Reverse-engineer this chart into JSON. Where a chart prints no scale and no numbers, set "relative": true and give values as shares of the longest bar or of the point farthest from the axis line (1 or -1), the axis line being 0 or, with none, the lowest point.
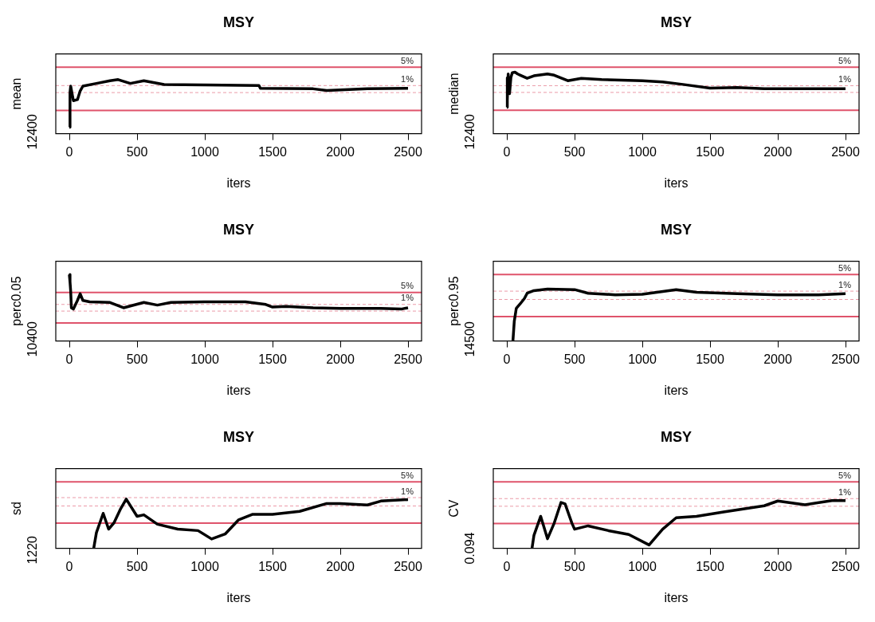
{
  "chart_data": [
    {
      "type": "line",
      "title": "MSY",
      "xlabel": "iters",
      "ylabel": "mean",
      "relative": true,
      "xlim": [
        -100,
        2600
      ],
      "xticks": [
        0,
        500,
        1000,
        1500,
        2000,
        2500
      ],
      "annotations": [
        "12400",
        {
          "text": "5%",
          "y": 1.23
        },
        {
          "text": "1%",
          "y": 0.89
        }
      ],
      "series": [
        {
          "color": "#000000",
          "x": [
            0,
            5,
            10,
            30,
            60,
            80,
            100,
            200,
            300,
            360,
            450,
            550,
            700,
            1000,
            1400,
            1410,
            1800,
            1900,
            2200,
            2500
          ],
          "values": [
            0.12,
            0.76,
            0.88,
            0.61,
            0.63,
            0.79,
            0.88,
            0.93,
            0.98,
            1,
            0.93,
            0.98,
            0.91,
            0.9,
            0.89,
            0.84,
            0.83,
            0.8,
            0.83,
            0.84
          ]
        }
      ],
      "ref_lines": [
        {
          "axis": "y",
          "value": 1.23,
          "color": "#df536b",
          "line_style": "solid"
        },
        {
          "axis": "y",
          "value": 0.43,
          "color": "#df536b",
          "line_style": "solid"
        },
        {
          "axis": "y",
          "value": 0.89,
          "color": "#eb9aa8",
          "line_style": "dashed"
        },
        {
          "axis": "y",
          "value": 0.76,
          "color": "#eb9aa8",
          "line_style": "dashed"
        }
      ]
    },
    {
      "type": "line",
      "title": "MSY",
      "xlabel": "iters",
      "ylabel": "median",
      "relative": true,
      "xlim": [
        -100,
        2600
      ],
      "xticks": [
        0,
        500,
        1000,
        1500,
        2000,
        2500
      ],
      "annotations": [
        "12400",
        {
          "text": "5%",
          "y": 1.08
        },
        {
          "text": "1%",
          "y": 0.78
        }
      ],
      "series": [
        {
          "color": "#000000",
          "x": [
            0,
            2,
            5,
            10,
            20,
            30,
            40,
            60,
            80,
            100,
            150,
            200,
            300,
            350,
            450,
            550,
            700,
            1000,
            1150,
            1300,
            1500,
            1700,
            1900,
            2200,
            2500
          ],
          "values": [
            0.43,
            0.91,
            0.54,
            0.97,
            0.65,
            0.91,
            0.99,
            1,
            0.97,
            0.95,
            0.9,
            0.94,
            0.97,
            0.95,
            0.86,
            0.9,
            0.88,
            0.86,
            0.84,
            0.8,
            0.74,
            0.75,
            0.73,
            0.73,
            0.73
          ]
        }
      ],
      "ref_lines": [
        {
          "axis": "y",
          "value": 1.08,
          "color": "#df536b",
          "line_style": "solid"
        },
        {
          "axis": "y",
          "value": 0.38,
          "color": "#df536b",
          "line_style": "solid"
        },
        {
          "axis": "y",
          "value": 0.78,
          "color": "#eb9aa8",
          "line_style": "dashed"
        },
        {
          "axis": "y",
          "value": 0.67,
          "color": "#eb9aa8",
          "line_style": "dashed"
        }
      ]
    },
    {
      "type": "line",
      "title": "MSY",
      "xlabel": "iters",
      "ylabel": "perc0.05",
      "relative": true,
      "xlim": [
        -100,
        2600
      ],
      "xticks": [
        0,
        500,
        1000,
        1500,
        2000,
        2500
      ],
      "annotations": [
        "10400",
        {
          "text": "5%",
          "y": 0.73
        },
        {
          "text": "1%",
          "y": 0.55
        }
      ],
      "series": [
        {
          "color": "#000000",
          "x": [
            0,
            5,
            10,
            15,
            30,
            60,
            80,
            100,
            150,
            300,
            400,
            550,
            650,
            750,
            1000,
            1300,
            1450,
            1500,
            1600,
            1800,
            2000,
            2300,
            2450,
            2500
          ],
          "values": [
            1,
            0.89,
            0.75,
            0.5,
            0.48,
            0.61,
            0.71,
            0.61,
            0.59,
            0.58,
            0.5,
            0.58,
            0.54,
            0.58,
            0.59,
            0.59,
            0.55,
            0.51,
            0.52,
            0.5,
            0.49,
            0.49,
            0.48,
            0.5
          ]
        }
      ],
      "ref_lines": [
        {
          "axis": "y",
          "value": 0.73,
          "color": "#df536b",
          "line_style": "solid"
        },
        {
          "axis": "y",
          "value": 0.27,
          "color": "#df536b",
          "line_style": "solid"
        },
        {
          "axis": "y",
          "value": 0.55,
          "color": "#eb9aa8",
          "line_style": "dashed"
        },
        {
          "axis": "y",
          "value": 0.45,
          "color": "#eb9aa8",
          "line_style": "dashed"
        }
      ]
    },
    {
      "type": "line",
      "title": "MSY",
      "xlabel": "iters",
      "ylabel": "perc0.95",
      "relative": true,
      "xlim": [
        -100,
        2600
      ],
      "xticks": [
        0,
        500,
        1000,
        1500,
        2000,
        2500
      ],
      "annotations": [
        "14500",
        {
          "text": "5%",
          "y": 1.28
        },
        {
          "text": "1%",
          "y": 0.96
        }
      ],
      "series": [
        {
          "color": "#000000",
          "x": [
            45,
            55,
            70,
            100,
            130,
            150,
            200,
            300,
            500,
            600,
            800,
            1000,
            1250,
            1400,
            1700,
            2000,
            2300,
            2500
          ],
          "values": [
            0,
            0.38,
            0.63,
            0.72,
            0.82,
            0.92,
            0.97,
            1,
            0.99,
            0.92,
            0.89,
            0.9,
            0.99,
            0.94,
            0.91,
            0.89,
            0.89,
            0.91
          ]
        }
      ],
      "ref_lines": [
        {
          "axis": "y",
          "value": 1.28,
          "color": "#df536b",
          "line_style": "solid"
        },
        {
          "axis": "y",
          "value": 0.47,
          "color": "#df536b",
          "line_style": "solid"
        },
        {
          "axis": "y",
          "value": 0.96,
          "color": "#eb9aa8",
          "line_style": "dashed"
        },
        {
          "axis": "y",
          "value": 0.8,
          "color": "#eb9aa8",
          "line_style": "dashed"
        }
      ]
    },
    {
      "type": "line",
      "title": "MSY",
      "xlabel": "iters",
      "ylabel": "sd",
      "relative": true,
      "xlim": [
        -100,
        2600
      ],
      "xticks": [
        0,
        500,
        1000,
        1500,
        2000,
        2500
      ],
      "annotations": [
        "1220",
        {
          "text": "5%",
          "y": 1.35
        },
        {
          "text": "1%",
          "y": 1.03
        }
      ],
      "series": [
        {
          "color": "#000000",
          "x": [
            180,
            200,
            250,
            290,
            330,
            380,
            420,
            500,
            550,
            650,
            800,
            950,
            1050,
            1150,
            1250,
            1350,
            1500,
            1700,
            1900,
            2000,
            2200,
            2300,
            2500
          ],
          "values": [
            0,
            0.32,
            0.71,
            0.39,
            0.52,
            0.81,
            1,
            0.65,
            0.68,
            0.49,
            0.39,
            0.36,
            0.19,
            0.29,
            0.58,
            0.69,
            0.69,
            0.75,
            0.91,
            0.91,
            0.88,
            0.96,
            0.99
          ]
        }
      ],
      "ref_lines": [
        {
          "axis": "y",
          "value": 1.35,
          "color": "#df536b",
          "line_style": "solid"
        },
        {
          "axis": "y",
          "value": 0.51,
          "color": "#df536b",
          "line_style": "solid"
        },
        {
          "axis": "y",
          "value": 1.03,
          "color": "#eb9aa8",
          "line_style": "dashed"
        },
        {
          "axis": "y",
          "value": 0.86,
          "color": "#eb9aa8",
          "line_style": "dashed"
        }
      ]
    },
    {
      "type": "line",
      "title": "MSY",
      "xlabel": "iters",
      "ylabel": "CV",
      "relative": true,
      "xlim": [
        -100,
        2600
      ],
      "xticks": [
        0,
        500,
        1000,
        1500,
        2000,
        2500
      ],
      "annotations": [
        "0.094",
        {
          "text": "5%",
          "y": 1.39
        },
        {
          "text": "1%",
          "y": 1.04
        }
      ],
      "series": [
        {
          "color": "#000000",
          "x": [
            186,
            200,
            250,
            300,
            350,
            400,
            430,
            480,
            500,
            600,
            750,
            900,
            1050,
            1150,
            1250,
            1400,
            1600,
            1900,
            2000,
            2200,
            2400,
            2500
          ],
          "values": [
            0,
            0.27,
            0.67,
            0.2,
            0.53,
            0.96,
            0.93,
            0.53,
            0.4,
            0.47,
            0.37,
            0.29,
            0.07,
            0.4,
            0.64,
            0.67,
            0.76,
            0.89,
            0.99,
            0.91,
            1,
            1
          ]
        }
      ],
      "ref_lines": [
        {
          "axis": "y",
          "value": 1.39,
          "color": "#df536b",
          "line_style": "solid"
        },
        {
          "axis": "y",
          "value": 0.52,
          "color": "#df536b",
          "line_style": "solid"
        },
        {
          "axis": "y",
          "value": 1.04,
          "color": "#eb9aa8",
          "line_style": "dashed"
        },
        {
          "axis": "y",
          "value": 0.88,
          "color": "#eb9aa8",
          "line_style": "dashed"
        }
      ]
    }
  ]
}
